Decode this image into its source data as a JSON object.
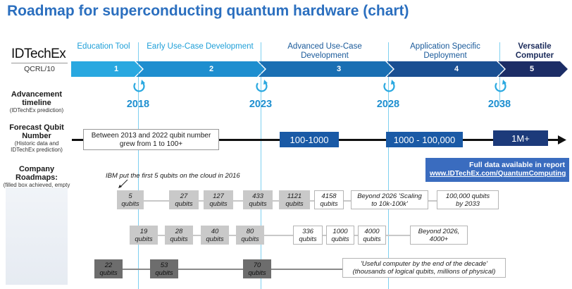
{
  "title": "Roadmap for superconducting quantum hardware (chart)",
  "brand": {
    "logo": "IDTechEx",
    "code": "QCRL/10"
  },
  "stages": [
    {
      "label": "Education Tool",
      "number": "1"
    },
    {
      "label": "Early Use-Case Development",
      "number": "2"
    },
    {
      "label": "Advanced Use-Case Development",
      "number": "3"
    },
    {
      "label": "Application Specific Deployment",
      "number": "4"
    },
    {
      "label": "Versatile Computer",
      "number": "5"
    }
  ],
  "years": [
    "2018",
    "2023",
    "2028",
    "2038"
  ],
  "left_labels": {
    "advancement_title": "Advancement timeline",
    "advancement_sub": "(IDTechEx prediction)",
    "forecast_title": "Forecast Qubit Number",
    "forecast_sub": "(Historic data and IDTechEx prediction)",
    "company_title": "Company Roadmaps:",
    "company_sub": "(filled box achieved, empty box forecast)"
  },
  "forecast": {
    "historic": "Between 2013 and 2022 qubit number grew from 1 to 100+",
    "range_1": "100-1000",
    "range_2": "1000 - 100,000",
    "range_3": "1M+"
  },
  "report": {
    "line1": "Full data available in report",
    "line2": "www.IDTechEx.com/QuantumComputing"
  },
  "annotation": "IBM put the first 5 qubits on the cloud in 2016",
  "row1": [
    {
      "text": "5 qubits",
      "state": "filled"
    },
    {
      "text": "27 qubits",
      "state": "filled"
    },
    {
      "text": "127 qubits",
      "state": "filled"
    },
    {
      "text": "433 qubits",
      "state": "filled"
    },
    {
      "text": "1121 qubits",
      "state": "filled"
    },
    {
      "text": "4158 qubits",
      "state": "empty"
    },
    {
      "text": "Beyond 2026 'Scaling to 10k-100k'",
      "state": "empty"
    },
    {
      "text": "100,000 qubits by 2033",
      "state": "empty"
    }
  ],
  "row2": [
    {
      "text": "19 qubits",
      "state": "filled"
    },
    {
      "text": "28 qubits",
      "state": "filled"
    },
    {
      "text": "40 qubits",
      "state": "filled"
    },
    {
      "text": "80 qubits",
      "state": "filled"
    },
    {
      "text": "336 qubits",
      "state": "empty"
    },
    {
      "text": "1000 qubits",
      "state": "empty"
    },
    {
      "text": "4000 qubits",
      "state": "empty"
    },
    {
      "text": "Beyond 2026, 4000+",
      "state": "empty"
    }
  ],
  "row3": [
    {
      "text": "22 qubits",
      "state": "dark"
    },
    {
      "text": "53 qubits",
      "state": "dark"
    },
    {
      "text": "70 qubits",
      "state": "dark"
    },
    {
      "text": "'Useful computer by the end of the decade' (thousands of logical qubits, millions of physical)",
      "state": "empty"
    }
  ],
  "colors": {
    "stage_1": "#29a8e0",
    "stage_2": "#1e8ecf",
    "stage_3": "#1a6fb3",
    "stage_4": "#1a4f92",
    "stage_5": "#1c2d66",
    "forecast_box": "#1a5aa6",
    "report_box": "#3a6cbf"
  }
}
